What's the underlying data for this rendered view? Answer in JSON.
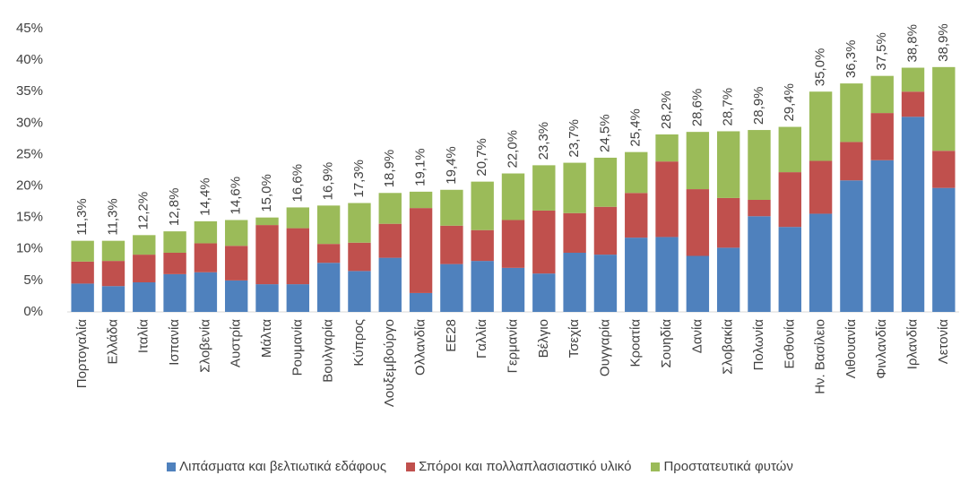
{
  "chart_data": {
    "type": "stacked_bar",
    "categories": [
      "Πορτογαλία",
      "Ελλάδα",
      "Ιταλία",
      "Ισπανία",
      "Σλοβενία",
      "Αυστρία",
      "Μάλτα",
      "Ρουμανία",
      "Βουλγαρία",
      "Κύπρος",
      "Λουξεμβούργο",
      "Ολλανδία",
      "ΕΕ28",
      "Γαλλία",
      "Γερμανία",
      "Βέλγιο",
      "Τσεχία",
      "Ουγγαρία",
      "Κροατία",
      "Σουηδία",
      "Δανία",
      "Σλοβακία",
      "Πολωνία",
      "Εσθονία",
      "Ην. Βασίλειο",
      "Λιθουανία",
      "Φινλανδία",
      "Ιρλανδία",
      "Λετονία"
    ],
    "series": [
      {
        "name": "Λιπάσματα και βελτιωτικά εδάφους",
        "color": "#4f81bd",
        "values": [
          4.5,
          4.1,
          4.7,
          6.0,
          6.3,
          5.0,
          4.4,
          4.4,
          7.8,
          6.5,
          8.6,
          3.0,
          7.6,
          8.1,
          7.0,
          6.1,
          9.4,
          9.1,
          11.8,
          11.9,
          8.9,
          10.2,
          15.2,
          13.5,
          15.6,
          20.9,
          24.1,
          31.0,
          19.7
        ]
      },
      {
        "name": "Σπόροι και πολλαπλασιαστικό υλικό",
        "color": "#c0504d",
        "values": [
          3.5,
          4.0,
          4.4,
          3.4,
          4.6,
          5.5,
          9.4,
          8.9,
          3.0,
          4.5,
          5.4,
          13.5,
          6.1,
          4.9,
          7.6,
          10.0,
          6.3,
          7.6,
          7.1,
          12.0,
          10.6,
          7.9,
          2.6,
          8.7,
          8.4,
          6.1,
          7.5,
          4.0,
          5.9
        ]
      },
      {
        "name": "Προστατευτικά φυτών",
        "color": "#9bbb59",
        "values": [
          3.3,
          3.2,
          3.1,
          3.4,
          3.5,
          4.1,
          1.2,
          3.3,
          6.1,
          6.3,
          4.9,
          2.6,
          5.7,
          7.7,
          7.4,
          7.2,
          8.0,
          7.8,
          6.5,
          4.3,
          9.1,
          10.6,
          11.1,
          7.2,
          11.0,
          9.3,
          5.9,
          3.8,
          13.3
        ]
      }
    ],
    "totals": [
      11.3,
      11.3,
      12.2,
      12.8,
      14.4,
      14.6,
      15.0,
      16.6,
      16.9,
      17.3,
      18.9,
      19.1,
      19.4,
      20.7,
      22.0,
      23.3,
      23.7,
      24.5,
      25.4,
      28.2,
      28.6,
      28.7,
      28.9,
      29.4,
      35.0,
      36.3,
      37.5,
      38.8,
      38.9
    ],
    "total_labels": [
      "11,3%",
      "11,3%",
      "12,2%",
      "12,8%",
      "14,4%",
      "14,6%",
      "15,0%",
      "16,6%",
      "16,9%",
      "17,3%",
      "18,9%",
      "19,1%",
      "19,4%",
      "20,7%",
      "22,0%",
      "23,3%",
      "23,7%",
      "24,5%",
      "25,4%",
      "28,2%",
      "28,6%",
      "28,7%",
      "28,9%",
      "29,4%",
      "35,0%",
      "36,3%",
      "37,5%",
      "38,8%",
      "38,9%"
    ],
    "ylim": [
      0,
      45
    ],
    "yticks": [
      {
        "value": 0,
        "label": "0%"
      },
      {
        "value": 5,
        "label": "5%"
      },
      {
        "value": 10,
        "label": "10%"
      },
      {
        "value": 15,
        "label": "15%"
      },
      {
        "value": 20,
        "label": "20%"
      },
      {
        "value": 25,
        "label": "25%"
      },
      {
        "value": 30,
        "label": "30%"
      },
      {
        "value": 35,
        "label": "35%"
      },
      {
        "value": 40,
        "label": "40%"
      },
      {
        "value": 45,
        "label": "45%"
      }
    ],
    "grid": false,
    "legend": "bottom"
  }
}
